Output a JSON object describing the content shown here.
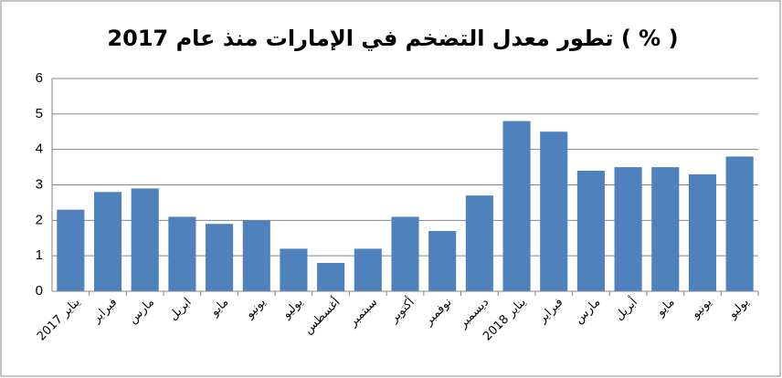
{
  "chart_data": {
    "type": "bar",
    "title": "تطور معدل التضخم في الإمارات منذ عام 2017 ( % )",
    "categories": [
      "يناير 2017",
      "فبراير",
      "مارس",
      "ابريل",
      "مايو",
      "يونيو",
      "يوليو",
      "أغسطس",
      "سبتمبر",
      "أكتوبر",
      "نوفمبر",
      "ديسمبر",
      "يناير 2018",
      "فبراير",
      "مارس",
      "أبريل",
      "مايو",
      "يونيو",
      "يوليو"
    ],
    "values": [
      2.3,
      2.8,
      2.9,
      2.1,
      1.9,
      2.0,
      1.2,
      0.8,
      1.2,
      2.1,
      1.7,
      2.7,
      4.8,
      4.5,
      3.4,
      3.5,
      3.5,
      3.3,
      3.8
    ],
    "color": "#4f81bd",
    "ylim": [
      0,
      6
    ],
    "yticks": [
      0,
      1,
      2,
      3,
      4,
      5,
      6
    ],
    "grid": true
  }
}
